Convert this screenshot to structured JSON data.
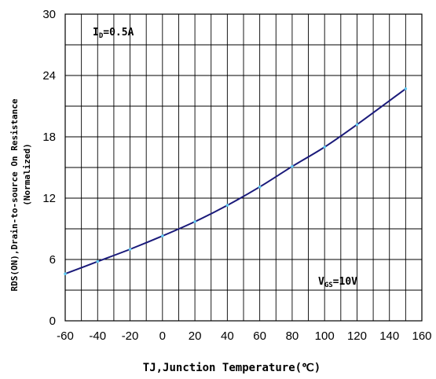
{
  "chart_data": {
    "type": "line",
    "title": "",
    "xlabel": "TJ,Junction Temperature(℃)",
    "ylabel_line1": "RDS(ON),Drain-to-source On Resistance",
    "ylabel_line2": "(Normalized)",
    "xlim": [
      -60,
      160
    ],
    "ylim": [
      0,
      30
    ],
    "x_ticks": [
      "-60",
      "-40",
      "-20",
      "0",
      "20",
      "40",
      "60",
      "80",
      "100",
      "120",
      "140",
      "160"
    ],
    "y_ticks": [
      "0",
      "6",
      "12",
      "18",
      "24",
      "30"
    ],
    "grid": true,
    "annotations": {
      "top_left": {
        "main": "I",
        "sub": "D",
        "rest": "=0.5A"
      },
      "bottom_right": {
        "main": "V",
        "sub": "GS",
        "rest": "=10V"
      }
    },
    "colors": {
      "line": "#1a1a7a",
      "points": "#5fc8f0",
      "grid": "#000000"
    },
    "series": [
      {
        "x": [
          -60,
          -40,
          -20,
          0,
          20,
          40,
          60,
          80,
          100,
          120,
          150
        ],
        "y": [
          4.6,
          5.8,
          7.0,
          8.3,
          9.7,
          11.3,
          13.1,
          15.1,
          17.0,
          19.2,
          22.7
        ]
      }
    ]
  }
}
